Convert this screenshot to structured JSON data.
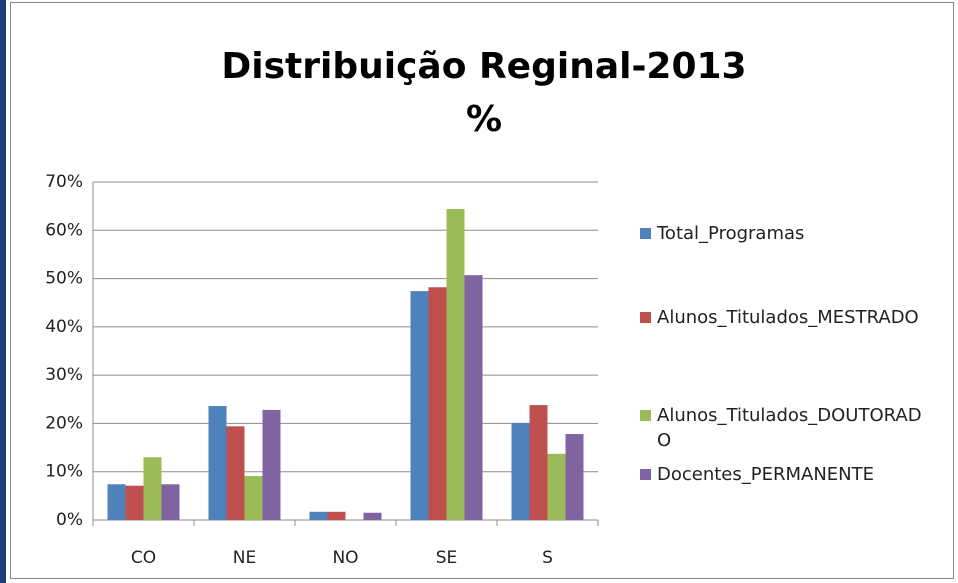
{
  "chart_data": {
    "type": "bar",
    "title": "Distribuição Reginal-2013",
    "subtitle": "%",
    "categories": [
      "CO",
      "NE",
      "NO",
      "SE",
      "S"
    ],
    "series": [
      {
        "name": "Total_Programas",
        "color": "#4f81bd",
        "values": [
          7.4,
          23.6,
          1.7,
          47.4,
          20.1
        ]
      },
      {
        "name": "Alunos_Titulados_MESTRADO",
        "color": "#c0504d",
        "values": [
          7.1,
          19.4,
          1.7,
          48.2,
          23.8
        ]
      },
      {
        "name": "Alunos_Titulados_DOUTORADO",
        "color": "#9bbb59",
        "values": [
          13.0,
          9.1,
          0,
          64.4,
          13.7
        ]
      },
      {
        "name": "Docentes_PERMANENTE",
        "color": "#8064a2",
        "values": [
          7.4,
          22.8,
          1.5,
          50.7,
          17.8
        ]
      }
    ],
    "ylim": [
      0,
      70
    ],
    "yticks": [
      {
        "value": 0,
        "label": "0%"
      },
      {
        "value": 10,
        "label": "10%"
      },
      {
        "value": 20,
        "label": "20%"
      },
      {
        "value": 30,
        "label": "30%"
      },
      {
        "value": 40,
        "label": "40%"
      },
      {
        "value": 50,
        "label": "50%"
      },
      {
        "value": 60,
        "label": "60%"
      },
      {
        "value": 70,
        "label": "70%"
      }
    ],
    "grid": true,
    "legend": "right"
  }
}
